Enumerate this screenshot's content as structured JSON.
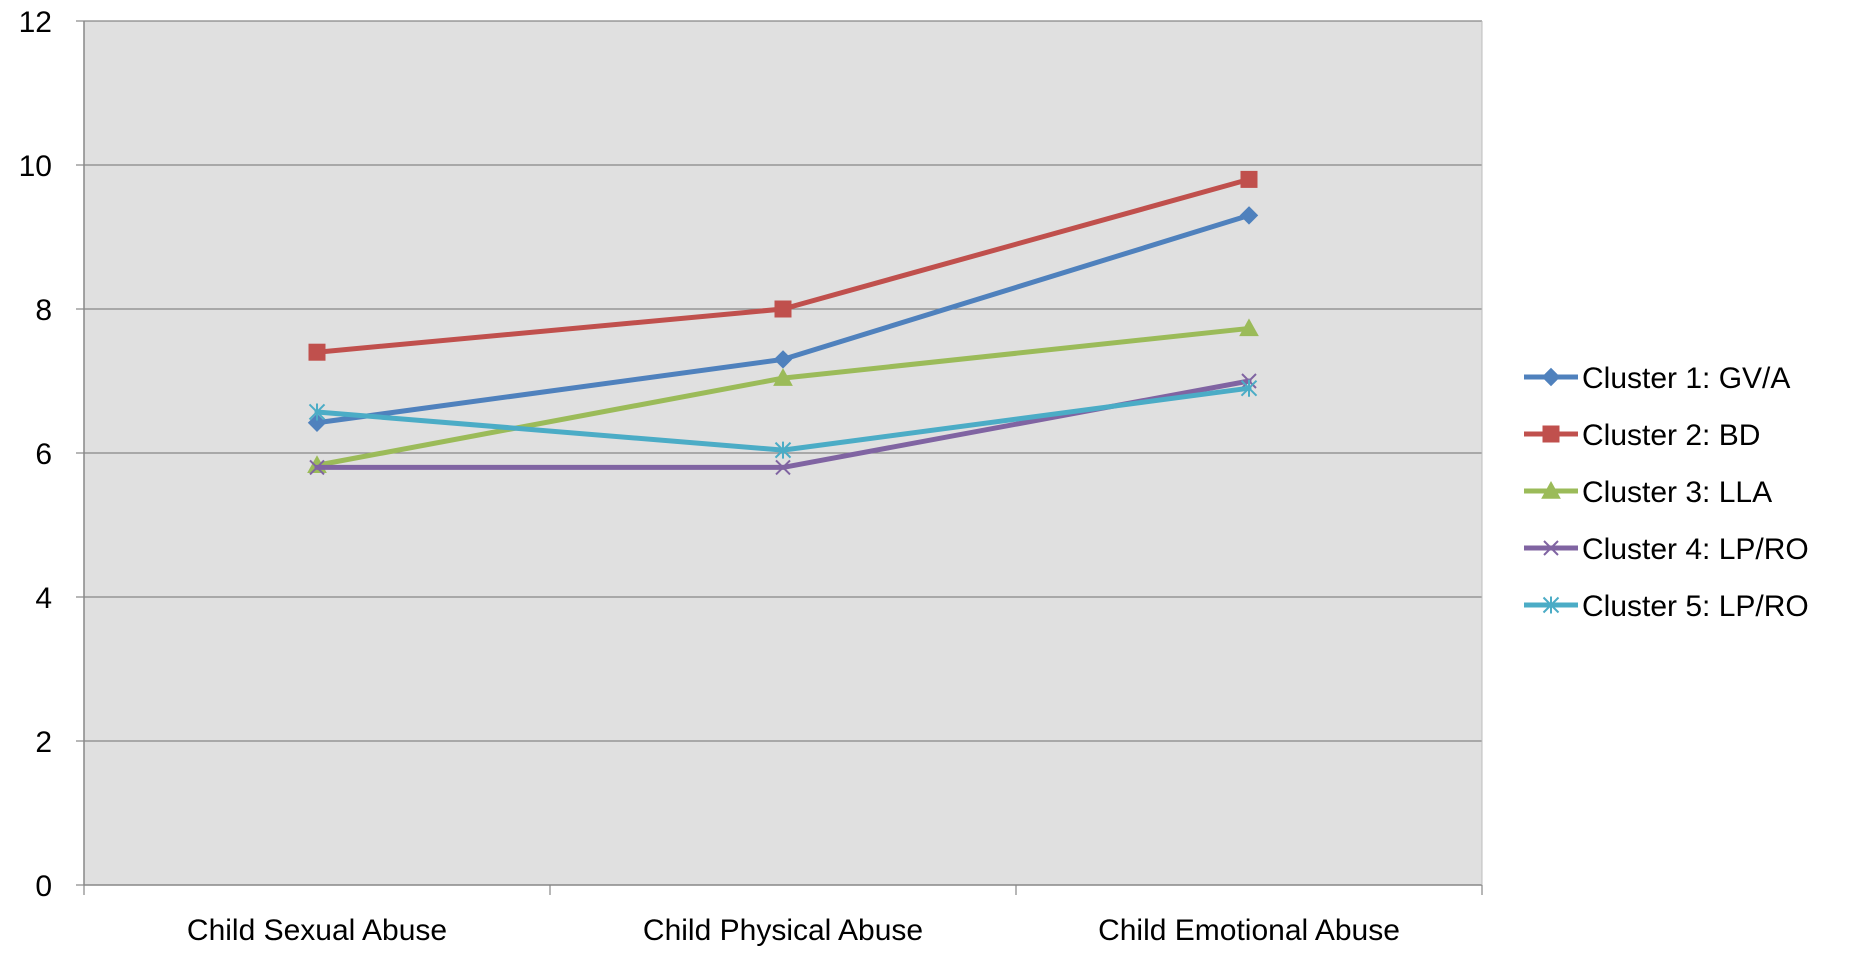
{
  "chart_data": {
    "type": "line",
    "title": "",
    "xlabel": "",
    "ylabel": "",
    "categories": [
      "Child Sexual Abuse",
      "Child Physical Abuse",
      "Child Emotional Abuse"
    ],
    "ylim": [
      0,
      12
    ],
    "yticks": [
      0,
      2,
      4,
      6,
      8,
      10,
      12
    ],
    "grid": true,
    "plot_background": "#e0e0e0",
    "legend_position": "right",
    "series": [
      {
        "name": "Cluster 1: GV/A",
        "values": [
          6.42,
          7.3,
          9.3
        ],
        "color": "#4f81bd",
        "marker": "diamond"
      },
      {
        "name": "Cluster 2: BD",
        "values": [
          7.4,
          8.0,
          9.8
        ],
        "color": "#c0504d",
        "marker": "square"
      },
      {
        "name": "Cluster 3: LLA",
        "values": [
          5.83,
          7.04,
          7.73
        ],
        "color": "#9bbb59",
        "marker": "triangle"
      },
      {
        "name": "Cluster 4: LP/RO",
        "values": [
          5.8,
          5.8,
          7.0
        ],
        "color": "#8064a2",
        "marker": "x"
      },
      {
        "name": "Cluster 5: LP/RO",
        "values": [
          6.57,
          6.04,
          6.9
        ],
        "color": "#4bacc6",
        "marker": "star"
      }
    ]
  }
}
